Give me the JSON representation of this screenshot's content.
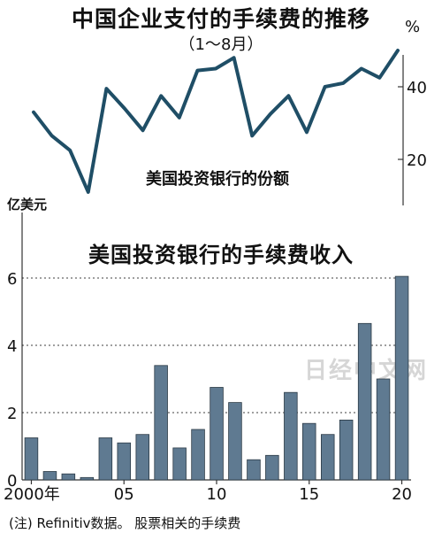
{
  "line_chart": {
    "title": "中国企业支付的手续费的推移",
    "subtitle": "（1～8月）",
    "unit": "%",
    "annotation": "美国投资银行的份额"
  },
  "bar_chart": {
    "title": "美国投资银行的手续费收入",
    "unit": "亿美元"
  },
  "watermark": "日经中文网",
  "footnote": "(注)  Refinitiv数据。 股票相关的手续费",
  "colors": {
    "line": "#1f4e66",
    "bar": "#5f7a91",
    "bar_stroke": "#2b3a45",
    "axis": "#333333",
    "grid": "#000000"
  },
  "chart_data": [
    {
      "type": "line",
      "title": "中国企业支付的手续费的推移",
      "subtitle": "（1～8月）",
      "ylabel": "%",
      "annotation": "美国投资银行的份额",
      "x": [
        2000,
        2001,
        2002,
        2003,
        2004,
        2005,
        2006,
        2007,
        2008,
        2009,
        2010,
        2011,
        2012,
        2013,
        2014,
        2015,
        2016,
        2017,
        2018,
        2019,
        2020
      ],
      "y": [
        33,
        26.5,
        22.5,
        11,
        39.5,
        34,
        28,
        37.5,
        31.5,
        44.5,
        45,
        48,
        26.5,
        32.5,
        37.5,
        27.5,
        40,
        41,
        45,
        42.5,
        50
      ],
      "yticks": [
        20,
        40
      ],
      "ylim": [
        8,
        56
      ]
    },
    {
      "type": "bar",
      "title": "美国投资银行的手续费收入",
      "ylabel": "亿美元",
      "categories": [
        "2000年",
        "2001",
        "2002",
        "2003",
        "2004",
        "2005",
        "2006",
        "2007",
        "2008",
        "2009",
        "2010",
        "2011",
        "2012",
        "2013",
        "2014",
        "2015",
        "2016",
        "2017",
        "2018",
        "2019",
        "2020"
      ],
      "x": [
        2000,
        2001,
        2002,
        2003,
        2004,
        2005,
        2006,
        2007,
        2008,
        2009,
        2010,
        2011,
        2012,
        2013,
        2014,
        2015,
        2016,
        2017,
        2018,
        2019,
        2020
      ],
      "values": [
        1.25,
        0.25,
        0.18,
        0.07,
        1.25,
        1.1,
        1.35,
        3.4,
        0.95,
        1.5,
        2.75,
        2.3,
        0.6,
        0.73,
        2.6,
        1.68,
        1.35,
        1.78,
        4.65,
        3.0,
        6.05
      ],
      "yticks": [
        0,
        2,
        4,
        6
      ],
      "xtick_labels": [
        "2000年",
        "05",
        "10",
        "15",
        "20"
      ],
      "xtick_positions": [
        2000,
        2005,
        2010,
        2015,
        2020
      ],
      "ylim": [
        0,
        7.5
      ],
      "grid": "horizontal"
    }
  ]
}
